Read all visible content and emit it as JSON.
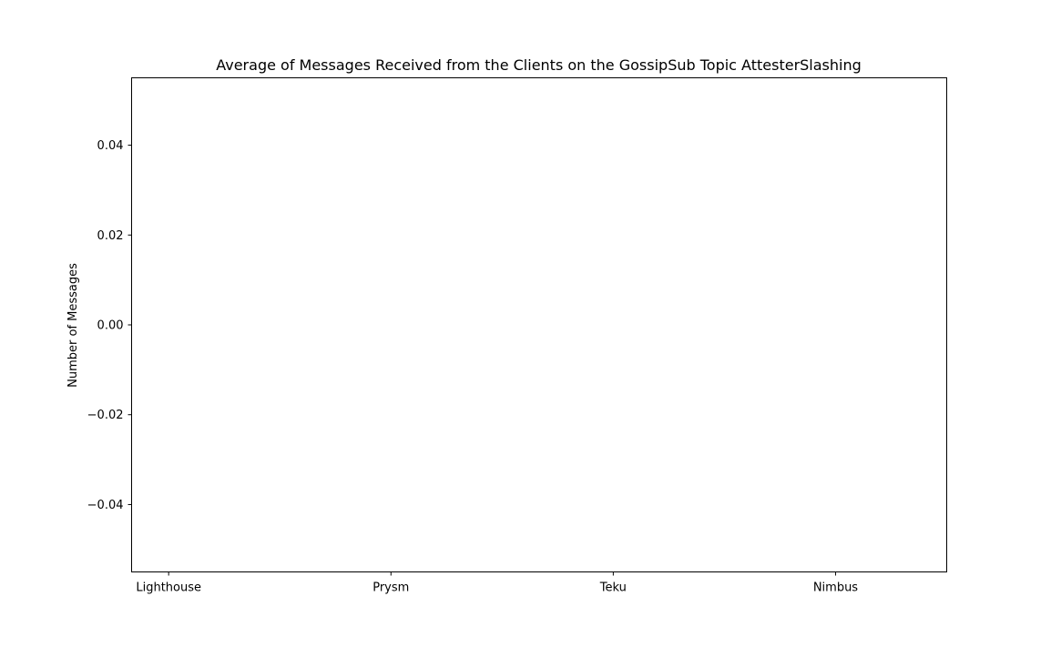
{
  "chart_data": {
    "type": "bar",
    "title": "Average of Messages Received from the Clients on the GossipSub Topic  AttesterSlashing",
    "xlabel": "",
    "ylabel": "Number of Messages",
    "categories": [
      "Lighthouse",
      "Prysm",
      "Teku",
      "Nimbus"
    ],
    "values": [
      0,
      0,
      0,
      0
    ],
    "ylim": [
      -0.055,
      0.055
    ],
    "yticks": [
      -0.04,
      -0.02,
      0.0,
      0.02,
      0.04
    ],
    "ytick_labels": [
      "−0.04",
      "−0.02",
      "0.00",
      "0.02",
      "0.04"
    ],
    "grid": false,
    "legend": "none",
    "colors": {
      "bar": "#1f77b4",
      "axis": "#000000",
      "background": "#ffffff"
    }
  }
}
